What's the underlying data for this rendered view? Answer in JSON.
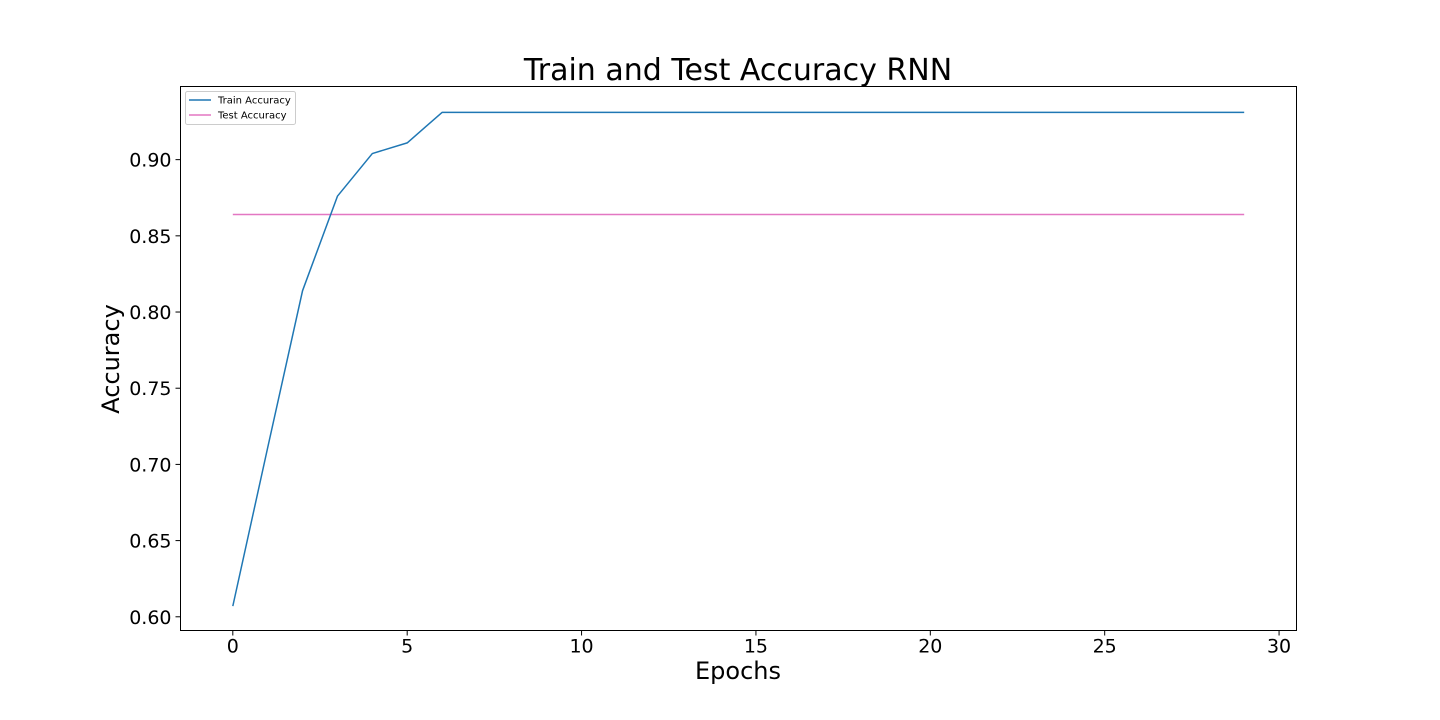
{
  "chart_data": {
    "type": "line",
    "title": "Train and Test Accuracy RNN",
    "xlabel": "Epochs",
    "ylabel": "Accuracy",
    "xlim": [
      -1.5,
      30.5
    ],
    "ylim": [
      0.591,
      0.948
    ],
    "x_ticks": [
      0,
      5,
      10,
      15,
      20,
      25,
      30
    ],
    "y_ticks": [
      0.6,
      0.65,
      0.7,
      0.75,
      0.8,
      0.85,
      0.9
    ],
    "x_tick_labels": [
      "0",
      "5",
      "10",
      "15",
      "20",
      "25",
      "30"
    ],
    "y_tick_labels": [
      "0.60",
      "0.65",
      "0.70",
      "0.75",
      "0.80",
      "0.85",
      "0.90"
    ],
    "grid": false,
    "legend_position": "top-left",
    "x": [
      0,
      1,
      2,
      3,
      4,
      5,
      6,
      7,
      8,
      9,
      10,
      11,
      12,
      13,
      14,
      15,
      16,
      17,
      18,
      19,
      20,
      21,
      22,
      23,
      24,
      25,
      26,
      27,
      28,
      29
    ],
    "series": [
      {
        "name": "Train Accuracy",
        "color": "#1f77b4",
        "values": [
          0.607,
          0.711,
          0.814,
          0.876,
          0.904,
          0.911,
          0.931,
          0.931,
          0.931,
          0.931,
          0.931,
          0.931,
          0.931,
          0.931,
          0.931,
          0.931,
          0.931,
          0.931,
          0.931,
          0.931,
          0.931,
          0.931,
          0.931,
          0.931,
          0.931,
          0.931,
          0.931,
          0.931,
          0.931,
          0.931
        ]
      },
      {
        "name": "Test Accuracy",
        "color": "#e377c2",
        "values": [
          0.864,
          0.864,
          0.864,
          0.864,
          0.864,
          0.864,
          0.864,
          0.864,
          0.864,
          0.864,
          0.864,
          0.864,
          0.864,
          0.864,
          0.864,
          0.864,
          0.864,
          0.864,
          0.864,
          0.864,
          0.864,
          0.864,
          0.864,
          0.864,
          0.864,
          0.864,
          0.864,
          0.864,
          0.864,
          0.864
        ]
      }
    ]
  }
}
